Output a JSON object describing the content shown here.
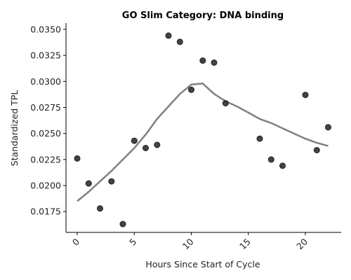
{
  "chart_data": {
    "type": "scatter",
    "title": "GO Slim Category: DNA binding",
    "xlabel": "Hours Since Start of Cycle",
    "ylabel": "Standardized TPL",
    "xlim": [
      -1,
      23
    ],
    "ylim": [
      0.0155,
      0.0356
    ],
    "xticks": [
      0,
      5,
      10,
      15,
      20
    ],
    "xtick_labels": [
      "0",
      "5",
      "10",
      "15",
      "20"
    ],
    "xtick_rotation": 45,
    "yticks": [
      0.0175,
      0.02,
      0.0225,
      0.025,
      0.0275,
      0.03,
      0.0325,
      0.035
    ],
    "ytick_labels": [
      "0.0175",
      "0.0200",
      "0.0225",
      "0.0250",
      "0.0275",
      "0.0300",
      "0.0325",
      "0.0350"
    ],
    "grid": false,
    "points": [
      {
        "x": 0,
        "y": 0.0226
      },
      {
        "x": 1,
        "y": 0.0202
      },
      {
        "x": 2,
        "y": 0.0178
      },
      {
        "x": 3,
        "y": 0.0204
      },
      {
        "x": 4,
        "y": 0.0163
      },
      {
        "x": 5,
        "y": 0.0243
      },
      {
        "x": 6,
        "y": 0.0236
      },
      {
        "x": 7,
        "y": 0.0239
      },
      {
        "x": 8,
        "y": 0.0344
      },
      {
        "x": 9,
        "y": 0.0338
      },
      {
        "x": 10,
        "y": 0.0292
      },
      {
        "x": 11,
        "y": 0.032
      },
      {
        "x": 12,
        "y": 0.0318
      },
      {
        "x": 13,
        "y": 0.0279
      },
      {
        "x": 16,
        "y": 0.0245
      },
      {
        "x": 17,
        "y": 0.0225
      },
      {
        "x": 18,
        "y": 0.0219
      },
      {
        "x": 20,
        "y": 0.0287
      },
      {
        "x": 21,
        "y": 0.0234
      },
      {
        "x": 22,
        "y": 0.0256
      }
    ],
    "trend": [
      {
        "x": 0,
        "y": 0.0185
      },
      {
        "x": 1,
        "y": 0.0194
      },
      {
        "x": 2,
        "y": 0.0204
      },
      {
        "x": 3,
        "y": 0.0214
      },
      {
        "x": 4,
        "y": 0.0225
      },
      {
        "x": 5,
        "y": 0.0236
      },
      {
        "x": 6,
        "y": 0.0249
      },
      {
        "x": 7,
        "y": 0.0264
      },
      {
        "x": 8,
        "y": 0.0276
      },
      {
        "x": 9,
        "y": 0.0288
      },
      {
        "x": 10,
        "y": 0.0297
      },
      {
        "x": 11,
        "y": 0.0298
      },
      {
        "x": 12,
        "y": 0.0288
      },
      {
        "x": 13,
        "y": 0.0281
      },
      {
        "x": 14,
        "y": 0.0276
      },
      {
        "x": 15,
        "y": 0.027
      },
      {
        "x": 16,
        "y": 0.0264
      },
      {
        "x": 17,
        "y": 0.026
      },
      {
        "x": 18,
        "y": 0.0255
      },
      {
        "x": 19,
        "y": 0.025
      },
      {
        "x": 20,
        "y": 0.0245
      },
      {
        "x": 21,
        "y": 0.0241
      },
      {
        "x": 22,
        "y": 0.0238
      }
    ],
    "colors": {
      "points": "#222222",
      "trend": "#808080"
    }
  }
}
